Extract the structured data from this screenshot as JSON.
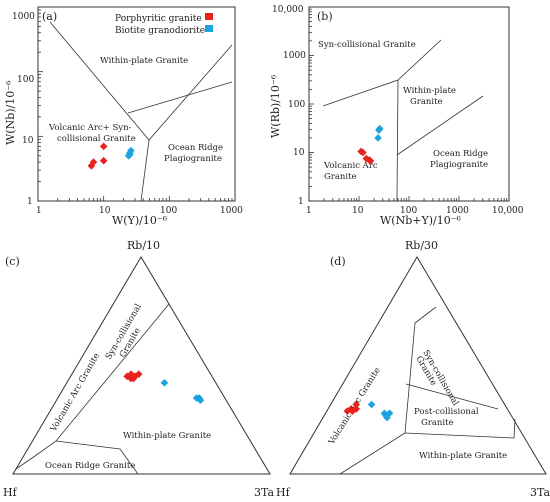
{
  "colors": {
    "porphyritic": "#e8231f",
    "biotite": "#1ba3e0",
    "line": "#333333"
  },
  "legend": [
    {
      "name": "Porphyritic granite",
      "color": "#e8231f"
    },
    {
      "name": "Biotite granodiorite",
      "color": "#1ba3e0"
    }
  ],
  "chart_data": [
    {
      "panel": "(a)",
      "type": "scatter",
      "xscale": "log",
      "yscale": "log",
      "xlim": [
        1,
        1000
      ],
      "ylim": [
        1,
        1000
      ],
      "xticks": [
        "1",
        "10",
        "100",
        "1000"
      ],
      "yticks": [
        "1",
        "10",
        "100",
        "1000"
      ],
      "xlabel": "W(Y)/10⁻⁶",
      "ylabel": "W(Nb)/10⁻⁶",
      "regions": [
        "Within-plate Granite",
        "Volcanic Arc+ Syn-",
        "collisional Granite",
        "Ocean Ridge",
        "Plagiogranite"
      ],
      "series": [
        {
          "name": "Porphyritic granite",
          "points": [
            [
              6.5,
              3.5
            ],
            [
              7,
              4
            ],
            [
              10,
              4.2
            ],
            [
              10,
              7
            ]
          ]
        },
        {
          "name": "Biotite granodiorite",
          "points": [
            [
              24,
              5
            ],
            [
              25,
              5.5
            ],
            [
              26,
              6
            ],
            [
              25,
              5.2
            ]
          ]
        }
      ]
    },
    {
      "panel": "(b)",
      "type": "scatter",
      "xscale": "log",
      "yscale": "log",
      "xlim": [
        1,
        10000
      ],
      "ylim": [
        1,
        10000
      ],
      "xticks": [
        "1",
        "10",
        "100",
        "1000",
        "10,000"
      ],
      "yticks": [
        "1",
        "10",
        "100",
        "1000",
        "10,000"
      ],
      "xlabel": "W(Nb+Y)/10⁻⁶",
      "ylabel": "W(Rb)/10⁻⁶",
      "regions": [
        "Syn-collisional Granite",
        "Within-plate",
        "Granite",
        "Volcanic Arc",
        "Granite",
        "Ocean Ridge",
        "Plagiogranite"
      ],
      "series": [
        {
          "name": "Porphyritic granite",
          "points": [
            [
              11,
              10.5
            ],
            [
              12,
              10
            ],
            [
              14,
              7.5
            ],
            [
              16,
              7
            ],
            [
              17,
              6.7
            ]
          ]
        },
        {
          "name": "Biotite granodiorite",
          "points": [
            [
              24,
              20
            ],
            [
              25,
              29
            ],
            [
              26,
              31
            ]
          ]
        }
      ]
    },
    {
      "panel": "(c)",
      "type": "ternary",
      "top": "Rb/10",
      "left": "Hf",
      "right": "3Ta",
      "regions": [
        "Syn-collisional",
        "Granite",
        "Volcanic Arc Granite",
        "Within-plate Granite",
        "Ocean Ridge Granite"
      ],
      "series": [
        {
          "name": "Porphyritic granite",
          "points": [
            [
              0.26,
              0.46
            ],
            [
              0.25,
              0.44
            ],
            [
              0.24,
              0.44
            ],
            [
              0.22,
              0.45
            ],
            [
              0.23,
              0.46
            ],
            [
              0.25,
              0.45
            ]
          ]
        },
        {
          "name": "Biotite granodiorite",
          "points": [
            [
              0.38,
              0.42
            ],
            [
              0.54,
              0.35
            ],
            [
              0.55,
              0.35
            ],
            [
              0.56,
              0.34
            ]
          ]
        }
      ]
    },
    {
      "panel": "(d)",
      "type": "ternary",
      "top": "Rb/30",
      "left": "Hf",
      "right": "3Ta",
      "regions": [
        "Syn-collisional",
        "Granite",
        "Post-collisional",
        "Granite",
        "Volcanic Arc Granite",
        "Within-plate Granite"
      ],
      "series": [
        {
          "name": "Porphyritic granite",
          "points": [
            [
              0.08,
              0.29
            ],
            [
              0.09,
              0.3
            ],
            [
              0.1,
              0.29
            ],
            [
              0.1,
              0.32
            ],
            [
              0.11,
              0.3
            ]
          ]
        },
        {
          "name": "Biotite granodiorite",
          "points": [
            [
              0.16,
              0.32
            ],
            [
              0.23,
              0.28
            ],
            [
              0.24,
              0.27
            ],
            [
              0.25,
              0.28
            ],
            [
              0.25,
              0.26
            ]
          ]
        }
      ]
    }
  ]
}
